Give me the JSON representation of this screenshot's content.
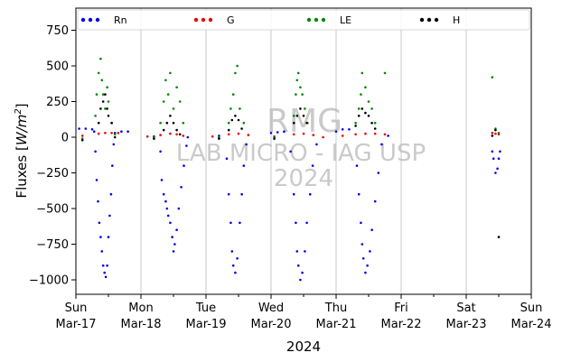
{
  "chart_data": {
    "type": "scatter",
    "title": "",
    "ylabel": "Fluxes [W/m²]",
    "ylabel_parts": {
      "main": "Fluxes [",
      "unit_base": "W/m",
      "exponent": "2",
      "close": "]"
    },
    "xlabel": "2024",
    "ylim": [
      -1100,
      900
    ],
    "xlim": [
      0,
      7
    ],
    "y_ticks": [
      -1000,
      -750,
      -500,
      -250,
      0,
      250,
      500,
      750
    ],
    "x_ticks": [
      {
        "x": 0,
        "day": "Sun",
        "date": "Mar-17"
      },
      {
        "x": 1,
        "day": "Mon",
        "date": "Mar-18"
      },
      {
        "x": 2,
        "day": "Tue",
        "date": "Mar-19"
      },
      {
        "x": 3,
        "day": "Wed",
        "date": "Mar-20"
      },
      {
        "x": 4,
        "day": "Thu",
        "date": "Mar-21"
      },
      {
        "x": 5,
        "day": "Fri",
        "date": "Mar-22"
      },
      {
        "x": 6,
        "day": "Sat",
        "date": "Mar-23"
      },
      {
        "x": 7,
        "day": "Sun",
        "date": "Mar-24"
      }
    ],
    "grid": "vertical",
    "legend_placement": "top",
    "series": [
      {
        "name": "Rn",
        "color": "#0000ee",
        "points": [
          [
            0.05,
            60
          ],
          [
            0.15,
            60
          ],
          [
            0.25,
            55
          ],
          [
            0.28,
            40
          ],
          [
            0.3,
            -100
          ],
          [
            0.32,
            -300
          ],
          [
            0.34,
            -450
          ],
          [
            0.36,
            -600
          ],
          [
            0.38,
            -700
          ],
          [
            0.4,
            -800
          ],
          [
            0.42,
            -900
          ],
          [
            0.44,
            -950
          ],
          [
            0.46,
            -980
          ],
          [
            0.48,
            -900
          ],
          [
            0.5,
            -700
          ],
          [
            0.52,
            -550
          ],
          [
            0.54,
            -400
          ],
          [
            0.56,
            -200
          ],
          [
            0.58,
            -50
          ],
          [
            0.6,
            30
          ],
          [
            0.7,
            40
          ],
          [
            0.8,
            40
          ],
          [
            1.2,
            5
          ],
          [
            1.3,
            -100
          ],
          [
            1.32,
            -300
          ],
          [
            1.35,
            -400
          ],
          [
            1.38,
            -450
          ],
          [
            1.4,
            -500
          ],
          [
            1.42,
            -550
          ],
          [
            1.45,
            -600
          ],
          [
            1.48,
            -700
          ],
          [
            1.5,
            -800
          ],
          [
            1.52,
            -750
          ],
          [
            1.55,
            -650
          ],
          [
            1.58,
            -500
          ],
          [
            1.62,
            -350
          ],
          [
            1.66,
            -200
          ],
          [
            1.7,
            -60
          ],
          [
            1.72,
            0
          ],
          [
            2.2,
            10
          ],
          [
            2.32,
            -150
          ],
          [
            2.35,
            -400
          ],
          [
            2.38,
            -600
          ],
          [
            2.4,
            -800
          ],
          [
            2.42,
            -900
          ],
          [
            2.45,
            -950
          ],
          [
            2.48,
            -850
          ],
          [
            2.52,
            -600
          ],
          [
            2.55,
            -400
          ],
          [
            2.58,
            -200
          ],
          [
            2.62,
            -50
          ],
          [
            3.0,
            30
          ],
          [
            3.1,
            35
          ],
          [
            3.2,
            40
          ],
          [
            3.3,
            -100
          ],
          [
            3.35,
            -400
          ],
          [
            3.38,
            -600
          ],
          [
            3.4,
            -800
          ],
          [
            3.42,
            -900
          ],
          [
            3.45,
            -1000
          ],
          [
            3.48,
            -950
          ],
          [
            3.52,
            -800
          ],
          [
            3.55,
            -600
          ],
          [
            3.6,
            -400
          ],
          [
            3.64,
            -200
          ],
          [
            3.7,
            -50
          ],
          [
            4.0,
            40
          ],
          [
            4.1,
            55
          ],
          [
            4.2,
            55
          ],
          [
            4.32,
            -200
          ],
          [
            4.35,
            -400
          ],
          [
            4.38,
            -600
          ],
          [
            4.4,
            -750
          ],
          [
            4.42,
            -850
          ],
          [
            4.45,
            -950
          ],
          [
            4.48,
            -900
          ],
          [
            4.52,
            -800
          ],
          [
            4.55,
            -650
          ],
          [
            4.6,
            -450
          ],
          [
            4.65,
            -250
          ],
          [
            4.7,
            -50
          ],
          [
            4.8,
            10
          ],
          [
            6.4,
            -100
          ],
          [
            6.42,
            -150
          ],
          [
            6.45,
            -250
          ],
          [
            6.48,
            -220
          ],
          [
            6.5,
            -150
          ],
          [
            6.52,
            -100
          ]
        ]
      },
      {
        "name": "G",
        "color": "#ee0000",
        "points": [
          [
            0.1,
            10
          ],
          [
            0.35,
            25
          ],
          [
            0.45,
            30
          ],
          [
            0.55,
            30
          ],
          [
            0.65,
            30
          ],
          [
            1.1,
            5
          ],
          [
            1.3,
            15
          ],
          [
            1.45,
            25
          ],
          [
            1.55,
            20
          ],
          [
            1.65,
            10
          ],
          [
            2.1,
            5
          ],
          [
            2.35,
            20
          ],
          [
            2.5,
            25
          ],
          [
            2.65,
            15
          ],
          [
            3.05,
            5
          ],
          [
            3.35,
            20
          ],
          [
            3.5,
            25
          ],
          [
            3.65,
            15
          ],
          [
            3.8,
            0
          ],
          [
            4.1,
            10
          ],
          [
            4.3,
            20
          ],
          [
            4.45,
            25
          ],
          [
            4.6,
            25
          ],
          [
            4.75,
            20
          ],
          [
            6.4,
            30
          ],
          [
            6.45,
            25
          ],
          [
            6.5,
            20
          ]
        ]
      },
      {
        "name": "LE",
        "color": "#008800",
        "points": [
          [
            0.1,
            -10
          ],
          [
            0.3,
            150
          ],
          [
            0.32,
            300
          ],
          [
            0.35,
            450
          ],
          [
            0.38,
            550
          ],
          [
            0.4,
            400
          ],
          [
            0.42,
            300
          ],
          [
            0.45,
            200
          ],
          [
            0.48,
            350
          ],
          [
            0.5,
            250
          ],
          [
            0.55,
            100
          ],
          [
            0.6,
            20
          ],
          [
            1.2,
            0
          ],
          [
            1.3,
            100
          ],
          [
            1.35,
            250
          ],
          [
            1.38,
            400
          ],
          [
            1.42,
            300
          ],
          [
            1.45,
            450
          ],
          [
            1.5,
            200
          ],
          [
            1.55,
            350
          ],
          [
            1.6,
            250
          ],
          [
            1.65,
            100
          ],
          [
            2.2,
            0
          ],
          [
            2.35,
            100
          ],
          [
            2.38,
            200
          ],
          [
            2.42,
            300
          ],
          [
            2.45,
            450
          ],
          [
            2.48,
            500
          ],
          [
            2.52,
            200
          ],
          [
            2.58,
            100
          ],
          [
            3.05,
            0
          ],
          [
            3.35,
            150
          ],
          [
            3.38,
            300
          ],
          [
            3.4,
            400
          ],
          [
            3.42,
            450
          ],
          [
            3.45,
            350
          ],
          [
            3.48,
            300
          ],
          [
            3.52,
            200
          ],
          [
            3.56,
            100
          ],
          [
            4.3,
            100
          ],
          [
            4.35,
            200
          ],
          [
            4.38,
            300
          ],
          [
            4.4,
            450
          ],
          [
            4.45,
            350
          ],
          [
            4.5,
            250
          ],
          [
            4.55,
            200
          ],
          [
            4.6,
            100
          ],
          [
            4.75,
            450
          ],
          [
            6.4,
            420
          ],
          [
            6.45,
            60
          ],
          [
            6.5,
            30
          ]
        ]
      },
      {
        "name": "H",
        "color": "#000000",
        "points": [
          [
            0.1,
            -20
          ],
          [
            0.35,
            100
          ],
          [
            0.38,
            200
          ],
          [
            0.42,
            250
          ],
          [
            0.45,
            300
          ],
          [
            0.48,
            200
          ],
          [
            0.5,
            150
          ],
          [
            0.55,
            100
          ],
          [
            0.6,
            0
          ],
          [
            1.2,
            -10
          ],
          [
            1.35,
            50
          ],
          [
            1.4,
            100
          ],
          [
            1.45,
            150
          ],
          [
            1.5,
            100
          ],
          [
            1.55,
            50
          ],
          [
            1.6,
            20
          ],
          [
            2.2,
            -10
          ],
          [
            2.35,
            50
          ],
          [
            2.4,
            120
          ],
          [
            2.45,
            150
          ],
          [
            2.5,
            120
          ],
          [
            2.55,
            60
          ],
          [
            3.05,
            -10
          ],
          [
            3.35,
            100
          ],
          [
            3.4,
            150
          ],
          [
            3.45,
            200
          ],
          [
            3.5,
            150
          ],
          [
            3.55,
            100
          ],
          [
            4.3,
            80
          ],
          [
            4.35,
            150
          ],
          [
            4.4,
            200
          ],
          [
            4.45,
            170
          ],
          [
            4.5,
            150
          ],
          [
            4.55,
            100
          ],
          [
            4.6,
            60
          ],
          [
            6.4,
            10
          ],
          [
            6.45,
            50
          ],
          [
            6.5,
            -700
          ]
        ]
      }
    ]
  },
  "watermark": {
    "line1": "RMG",
    "line2": "LAB MICRO - IAG USP",
    "line3": "2024"
  }
}
